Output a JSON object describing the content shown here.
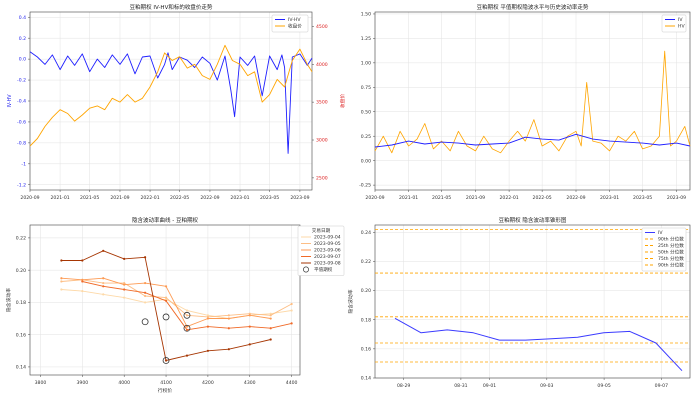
{
  "chart_data": [
    {
      "type": "line",
      "title": "豆粕期权 IV-HV和标的收盘价走势",
      "xlabel": "",
      "ylabel": "IV-HV",
      "y2label": "收盘价",
      "x_ticks": [
        "2020-09",
        "2021-01",
        "2021-05",
        "2021-09",
        "2022-01",
        "2022-05",
        "2022-09",
        "2023-01",
        "2023-05",
        "2023-09"
      ],
      "x_range": [
        "2020-09-01",
        "2023-10-20"
      ],
      "y_ticks": [
        "0.4",
        "0.2",
        "0.0",
        "-0.2",
        "-0.4",
        "-0.6",
        "-0.8",
        "-1",
        "-1.2"
      ],
      "y2_ticks": [
        "4500",
        "4000",
        "3500",
        "3000",
        "2500"
      ],
      "ylim": [
        -1.25,
        0.45
      ],
      "y2lim": [
        2340,
        4690
      ],
      "grid": true,
      "legend": "top-right",
      "axis_colors": {
        "left": "#2222ee",
        "right": "#dd2222"
      },
      "series": [
        {
          "name": "IV-HV",
          "axis": "left",
          "color": "#1f1fff",
          "dates": [
            "2020-09-01",
            "2020-10-01",
            "2020-11-01",
            "2020-12-01",
            "2021-01-01",
            "2021-02-01",
            "2021-03-01",
            "2021-04-01",
            "2021-05-01",
            "2021-06-01",
            "2021-07-01",
            "2021-08-01",
            "2021-09-01",
            "2021-10-01",
            "2021-11-01",
            "2021-12-01",
            "2022-01-01",
            "2022-02-01",
            "2022-03-01",
            "2022-03-15",
            "2022-04-01",
            "2022-05-01",
            "2022-06-01",
            "2022-07-01",
            "2022-08-01",
            "2022-09-01",
            "2022-10-01",
            "2022-11-01",
            "2022-11-25",
            "2022-12-10",
            "2023-01-01",
            "2023-02-01",
            "2023-03-01",
            "2023-04-01",
            "2023-05-01",
            "2023-06-01",
            "2023-06-20",
            "2023-07-01",
            "2023-07-15",
            "2023-08-01",
            "2023-09-01",
            "2023-10-01",
            "2023-10-20"
          ],
          "values": [
            0.07,
            0.02,
            -0.05,
            0.04,
            -0.1,
            0.03,
            -0.06,
            0.05,
            -0.12,
            0.0,
            -0.08,
            0.04,
            -0.05,
            0.05,
            -0.14,
            0.02,
            0.03,
            -0.18,
            -0.05,
            0.06,
            -0.1,
            0.02,
            -0.01,
            -0.08,
            0.02,
            -0.04,
            -0.2,
            0.03,
            -0.3,
            -0.55,
            0.02,
            -0.06,
            0.03,
            -0.35,
            0.03,
            -0.1,
            0.04,
            -0.08,
            -0.9,
            0.02,
            0.05,
            -0.06,
            0.01
          ]
        },
        {
          "name": "收盘价",
          "axis": "right",
          "color": "#ffa500",
          "dates": [
            "2020-09-01",
            "2020-10-01",
            "2020-11-01",
            "2020-12-01",
            "2021-01-01",
            "2021-02-01",
            "2021-03-01",
            "2021-04-01",
            "2021-05-01",
            "2021-06-01",
            "2021-07-01",
            "2021-08-01",
            "2021-09-01",
            "2021-10-01",
            "2021-11-01",
            "2021-12-01",
            "2022-01-01",
            "2022-02-01",
            "2022-03-01",
            "2022-04-01",
            "2022-05-01",
            "2022-06-01",
            "2022-07-01",
            "2022-08-01",
            "2022-09-01",
            "2022-10-01",
            "2022-11-01",
            "2022-12-01",
            "2023-01-01",
            "2023-02-01",
            "2023-03-01",
            "2023-04-01",
            "2023-05-01",
            "2023-06-01",
            "2023-07-01",
            "2023-08-01",
            "2023-09-01",
            "2023-10-01",
            "2023-10-20"
          ],
          "values": [
            2920,
            3020,
            3180,
            3300,
            3400,
            3350,
            3250,
            3330,
            3420,
            3450,
            3400,
            3550,
            3500,
            3600,
            3500,
            3550,
            3700,
            3900,
            4150,
            4050,
            4100,
            3950,
            4000,
            3850,
            3800,
            4000,
            4250,
            4050,
            4000,
            3850,
            3900,
            3500,
            3600,
            3800,
            3700,
            4050,
            4200,
            4000,
            3900
          ]
        }
      ]
    },
    {
      "type": "line",
      "title": "豆粕期权 平值期权隐波水平与历史波动率走势",
      "xlabel": "",
      "ylabel": "",
      "x_ticks": [
        "2020-09",
        "2021-01",
        "2021-05",
        "2021-09",
        "2022-01",
        "2022-05",
        "2022-09",
        "2023-01",
        "2023-05",
        "2023-09"
      ],
      "x_range": [
        "2020-09-01",
        "2023-10-20"
      ],
      "y_ticks": [
        "1.50",
        "1.25",
        "1.00",
        "0.75",
        "0.50",
        "0.25",
        "0.00",
        "-0.25"
      ],
      "ylim": [
        -0.3,
        1.52
      ],
      "grid": true,
      "legend": "top-right",
      "series": [
        {
          "name": "IV",
          "color": "#1f1fff",
          "dates": [
            "2020-09-01",
            "2020-11-01",
            "2021-01-01",
            "2021-03-01",
            "2021-05-01",
            "2021-07-01",
            "2021-09-01",
            "2021-11-01",
            "2022-01-01",
            "2022-03-01",
            "2022-05-01",
            "2022-07-01",
            "2022-09-01",
            "2022-11-01",
            "2023-01-01",
            "2023-03-01",
            "2023-05-01",
            "2023-07-01",
            "2023-09-01",
            "2023-10-20"
          ],
          "values": [
            0.14,
            0.16,
            0.2,
            0.17,
            0.19,
            0.18,
            0.16,
            0.17,
            0.18,
            0.24,
            0.22,
            0.21,
            0.27,
            0.22,
            0.2,
            0.19,
            0.18,
            0.16,
            0.18,
            0.15
          ]
        },
        {
          "name": "HV",
          "color": "#ffa500",
          "dates": [
            "2020-09-01",
            "2020-10-01",
            "2020-11-01",
            "2020-12-01",
            "2021-01-01",
            "2021-02-01",
            "2021-03-01",
            "2021-04-01",
            "2021-05-01",
            "2021-06-01",
            "2021-07-01",
            "2021-08-01",
            "2021-09-01",
            "2021-10-01",
            "2021-11-01",
            "2021-12-01",
            "2022-01-01",
            "2022-02-01",
            "2022-03-01",
            "2022-04-01",
            "2022-05-01",
            "2022-06-01",
            "2022-07-01",
            "2022-08-01",
            "2022-09-01",
            "2022-09-20",
            "2022-10-10",
            "2022-11-01",
            "2022-12-01",
            "2023-01-01",
            "2023-02-01",
            "2023-03-01",
            "2023-04-01",
            "2023-05-01",
            "2023-06-01",
            "2023-07-01",
            "2023-07-20",
            "2023-08-10",
            "2023-09-01",
            "2023-10-01",
            "2023-10-20"
          ],
          "values": [
            0.1,
            0.25,
            0.08,
            0.3,
            0.15,
            0.22,
            0.38,
            0.12,
            0.2,
            0.1,
            0.3,
            0.15,
            0.1,
            0.25,
            0.12,
            0.08,
            0.2,
            0.3,
            0.2,
            0.42,
            0.15,
            0.2,
            0.1,
            0.25,
            0.3,
            0.15,
            0.8,
            0.2,
            0.18,
            0.1,
            0.25,
            0.2,
            0.3,
            0.12,
            0.15,
            0.25,
            1.12,
            0.15,
            0.2,
            0.35,
            0.15
          ]
        }
      ]
    },
    {
      "type": "line",
      "title": "隐含波动率曲线 - 豆粕期权",
      "xlabel": "行权价",
      "ylabel": "隐含波动率",
      "x_ticks": [
        "3800",
        "3900",
        "4000",
        "4100",
        "4200",
        "4300",
        "4400"
      ],
      "y_ticks": [
        "0.22",
        "0.20",
        "0.18",
        "0.16",
        "0.14"
      ],
      "xlim": [
        3775,
        4420
      ],
      "ylim": [
        0.135,
        0.228
      ],
      "grid": true,
      "legend_title": "交易日期",
      "legend": "right",
      "atm_label": "平值期权",
      "series": [
        {
          "name": "2023-09-04",
          "color": "#fdd9a8",
          "x": [
            3750,
            3850,
            3900,
            3950,
            4000,
            4050,
            4100,
            4150,
            4200,
            4250,
            4300,
            4350,
            4400
          ],
          "y": [
            0.195,
            0.188,
            0.187,
            0.185,
            0.183,
            0.18,
            0.182,
            0.175,
            0.172,
            0.17,
            0.172,
            0.173,
            0.175
          ]
        },
        {
          "name": "2023-09-05",
          "color": "#fdbe85",
          "x": [
            3850,
            3900,
            3950,
            4000,
            4050,
            4100,
            4150,
            4200,
            4250,
            4300,
            4350,
            4400
          ],
          "y": [
            0.193,
            0.194,
            0.192,
            0.192,
            0.184,
            0.183,
            0.172,
            0.171,
            0.172,
            0.173,
            0.172,
            0.179
          ]
        },
        {
          "name": "2023-09-06",
          "color": "#fd9a53",
          "x": [
            3850,
            3900,
            3950,
            4000,
            4050,
            4100,
            4150,
            4200,
            4250,
            4300,
            4350
          ],
          "y": [
            0.195,
            0.194,
            0.195,
            0.191,
            0.192,
            0.19,
            0.165,
            0.17,
            0.17,
            0.172,
            0.17
          ]
        },
        {
          "name": "2023-09-07",
          "color": "#f06a28",
          "x": [
            3900,
            3950,
            4000,
            4050,
            4100,
            4150,
            4200,
            4250,
            4300,
            4350,
            4400
          ],
          "y": [
            0.193,
            0.19,
            0.188,
            0.186,
            0.181,
            0.163,
            0.165,
            0.164,
            0.165,
            0.164,
            0.167
          ]
        },
        {
          "name": "2023-09-08",
          "color": "#a63603",
          "x": [
            3850,
            3900,
            3950,
            4000,
            4050,
            4100,
            4150,
            4200,
            4250,
            4300,
            4350
          ],
          "y": [
            0.206,
            0.206,
            0.212,
            0.207,
            0.208,
            0.144,
            0.147,
            0.15,
            0.151,
            0.154,
            0.157
          ]
        }
      ],
      "atm_points": [
        {
          "x": 4050,
          "y": 0.168
        },
        {
          "x": 4100,
          "y": 0.171
        },
        {
          "x": 4150,
          "y": 0.172
        },
        {
          "x": 4150,
          "y": 0.164
        },
        {
          "x": 4100,
          "y": 0.144
        }
      ]
    },
    {
      "type": "line",
      "title": "豆粕期权 隐含波动率锥形图",
      "xlabel": "",
      "ylabel": "隐含波动率",
      "x_ticks": [
        "08-29",
        "08-31",
        "09-01",
        "09-03",
        "09-05",
        "09-07"
      ],
      "x_range": [
        "2023-08-28",
        "2023-09-08"
      ],
      "y_ticks": [
        "0.24",
        "0.22",
        "0.20",
        "0.18",
        "0.16",
        "0.14"
      ],
      "ylim": [
        0.14,
        0.245
      ],
      "grid": true,
      "legend": "top-right",
      "series": [
        {
          "name": "IV",
          "color": "#3b3bff",
          "dates": [
            "2023-08-28",
            "2023-08-29",
            "2023-08-30",
            "2023-08-31",
            "2023-09-01",
            "2023-09-02",
            "2023-09-03",
            "2023-09-04",
            "2023-09-05",
            "2023-09-06",
            "2023-09-07",
            "2023-09-08"
          ],
          "values": [
            0.181,
            0.171,
            0.173,
            0.171,
            0.166,
            0.166,
            0.167,
            0.168,
            0.171,
            0.172,
            0.164,
            0.145
          ]
        }
      ],
      "quantiles": [
        {
          "name": "90th 分位数",
          "value": 0.242,
          "color": "#ffa500"
        },
        {
          "name": "25th 分位数",
          "value": 0.212,
          "color": "#ffa500"
        },
        {
          "name": "50th 分位数",
          "value": 0.182,
          "color": "#ffa500"
        },
        {
          "name": "75th 分位数",
          "value": 0.164,
          "color": "#ffa500"
        },
        {
          "name": "90th 分位数",
          "value": 0.151,
          "color": "#ffa500"
        }
      ]
    }
  ]
}
